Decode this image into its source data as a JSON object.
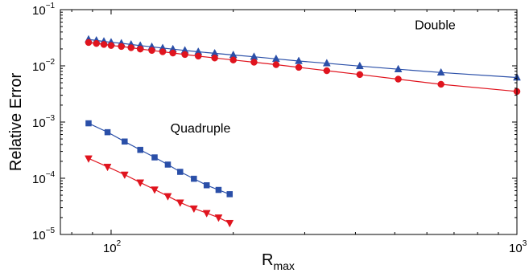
{
  "chart_data": {
    "type": "line",
    "title": "",
    "xlabel": {
      "base": "R",
      "subscript": "max"
    },
    "ylabel": "Relative Error",
    "xscale": "log",
    "yscale": "log",
    "xlim": [
      75,
      1000
    ],
    "ylim": [
      1e-05,
      0.1
    ],
    "grid": false,
    "x_ticks": [
      {
        "value": 100,
        "base": "10",
        "exp": "2"
      },
      {
        "value": 1000,
        "base": "10",
        "exp": "3"
      }
    ],
    "y_ticks": [
      {
        "value": 1e-05,
        "base": "10",
        "exp": "−5"
      },
      {
        "value": 0.0001,
        "base": "10",
        "exp": "−4"
      },
      {
        "value": 0.001,
        "base": "10",
        "exp": "−3"
      },
      {
        "value": 0.01,
        "base": "10",
        "exp": "−2"
      },
      {
        "value": 0.1,
        "base": "10",
        "exp": "−1"
      }
    ],
    "annotations": [
      {
        "text": "Double",
        "x": 560,
        "y": 0.045
      },
      {
        "text": "Quadruple",
        "x": 140,
        "y": 0.00065
      }
    ],
    "series": [
      {
        "marker": "triangle-up",
        "color": "#2a4fa8",
        "points": [
          [
            88,
            0.0295
          ],
          [
            92,
            0.0283
          ],
          [
            96,
            0.0272
          ],
          [
            100,
            0.0262
          ],
          [
            106,
            0.0252
          ],
          [
            112,
            0.024
          ],
          [
            118,
            0.0229
          ],
          [
            126,
            0.0218
          ],
          [
            134,
            0.0207
          ],
          [
            142,
            0.0198
          ],
          [
            152,
            0.0188
          ],
          [
            164,
            0.0178
          ],
          [
            180,
            0.0167
          ],
          [
            200,
            0.0156
          ],
          [
            225,
            0.0145
          ],
          [
            255,
            0.0133
          ],
          [
            290,
            0.0122
          ],
          [
            340,
            0.0111
          ],
          [
            410,
            0.0099
          ],
          [
            510,
            0.0087
          ],
          [
            650,
            0.0076
          ],
          [
            1000,
            0.0062
          ]
        ]
      },
      {
        "marker": "circle",
        "color": "#e0141e",
        "points": [
          [
            88,
            0.026
          ],
          [
            92,
            0.025
          ],
          [
            96,
            0.024
          ],
          [
            100,
            0.023
          ],
          [
            106,
            0.0221
          ],
          [
            112,
            0.021
          ],
          [
            118,
            0.0199
          ],
          [
            126,
            0.0188
          ],
          [
            134,
            0.0178
          ],
          [
            142,
            0.0169
          ],
          [
            152,
            0.0159
          ],
          [
            164,
            0.0149
          ],
          [
            180,
            0.0138
          ],
          [
            200,
            0.0127
          ],
          [
            225,
            0.0116
          ],
          [
            255,
            0.0105
          ],
          [
            290,
            0.0094
          ],
          [
            340,
            0.0082
          ],
          [
            410,
            0.007
          ],
          [
            510,
            0.0058
          ],
          [
            650,
            0.0047
          ],
          [
            1000,
            0.0035
          ]
        ]
      },
      {
        "marker": "square",
        "color": "#2a4fa8",
        "points": [
          [
            88,
            0.00095
          ],
          [
            98,
            0.00066
          ],
          [
            108,
            0.00045
          ],
          [
            118,
            0.00032
          ],
          [
            128,
            0.000235
          ],
          [
            138,
            0.000175
          ],
          [
            148,
            0.00013
          ],
          [
            160,
            9.8e-05
          ],
          [
            172,
            7.5e-05
          ],
          [
            184,
            6.2e-05
          ],
          [
            196,
            5.2e-05
          ]
        ]
      },
      {
        "marker": "triangle-down",
        "color": "#e0141e",
        "points": [
          [
            88,
            0.000225
          ],
          [
            98,
            0.00016
          ],
          [
            108,
            0.000116
          ],
          [
            118,
            8.4e-05
          ],
          [
            128,
            6.3e-05
          ],
          [
            138,
            4.8e-05
          ],
          [
            148,
            3.7e-05
          ],
          [
            160,
            2.9e-05
          ],
          [
            172,
            2.4e-05
          ],
          [
            184,
            2e-05
          ],
          [
            196,
            1.6e-05
          ]
        ]
      }
    ]
  }
}
